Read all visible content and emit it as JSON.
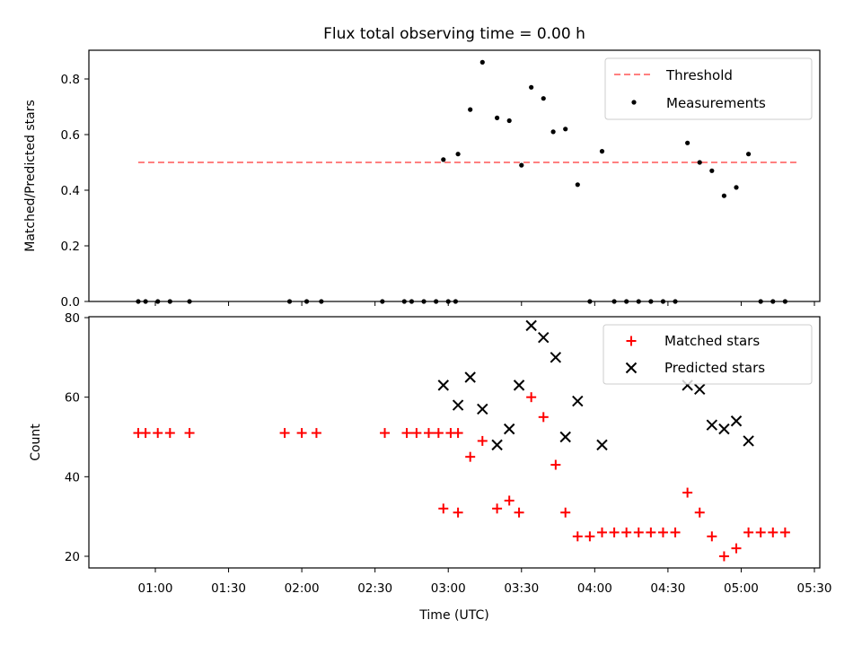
{
  "chart_data": [
    {
      "type": "scatter",
      "title": "Flux total observing time = 0.00 h",
      "xlabel": "",
      "ylabel": "Matched/Predicted stars",
      "ylim": [
        0,
        0.9
      ],
      "yticks": [
        "0.0",
        "0.2",
        "0.4",
        "0.6",
        "0.8"
      ],
      "legend_position": "top-right",
      "series": [
        {
          "name": "Threshold",
          "kind": "dashed-line",
          "color": "#ff8080",
          "x": [
            "00:53",
            "05:23"
          ],
          "y": [
            0.5,
            0.5
          ]
        },
        {
          "name": "Measurements",
          "kind": "points",
          "color": "#000000",
          "x": [
            "00:53",
            "00:56",
            "01:01",
            "01:06",
            "01:14",
            "01:55",
            "02:02",
            "02:08",
            "02:33",
            "02:42",
            "02:45",
            "02:50",
            "02:55",
            "03:00",
            "03:03",
            "02:58",
            "03:04",
            "03:09",
            "03:14",
            "03:20",
            "03:25",
            "03:30",
            "03:34",
            "03:39",
            "03:43",
            "03:48",
            "03:53",
            "03:58",
            "04:03",
            "04:08",
            "04:13",
            "04:18",
            "04:23",
            "04:28",
            "04:33",
            "04:38",
            "04:43",
            "04:48",
            "04:53",
            "04:58",
            "05:03",
            "05:08",
            "05:13",
            "05:18"
          ],
          "y": [
            0,
            0,
            0,
            0,
            0,
            0,
            0,
            0,
            0,
            0,
            0,
            0,
            0,
            0,
            0,
            0.51,
            0.53,
            0.69,
            0.86,
            0.66,
            0.65,
            0.49,
            0.77,
            0.73,
            0.61,
            0.62,
            0.42,
            0,
            0.54,
            0,
            0,
            0,
            0,
            0,
            0,
            0.57,
            0.5,
            0.47,
            0.38,
            0.41,
            0.53,
            0,
            0,
            0
          ]
        }
      ]
    },
    {
      "type": "scatter",
      "title": "",
      "xlabel": "Time (UTC)",
      "ylabel": "Count",
      "ylim": [
        17,
        81
      ],
      "yticks": [
        "20",
        "40",
        "60",
        "80"
      ],
      "xticks": [
        "01:00",
        "01:30",
        "02:00",
        "02:30",
        "03:00",
        "03:30",
        "04:00",
        "04:30",
        "05:00",
        "05:30"
      ],
      "legend_position": "top-right",
      "series": [
        {
          "name": "Matched stars",
          "marker": "plus",
          "color": "#ff0000",
          "x": [
            "00:53",
            "00:56",
            "01:01",
            "01:06",
            "01:14",
            "01:53",
            "02:00",
            "02:06",
            "02:34",
            "02:43",
            "02:47",
            "02:52",
            "02:56",
            "03:01",
            "03:04",
            "02:58",
            "03:04",
            "03:09",
            "03:14",
            "03:20",
            "03:25",
            "03:29",
            "03:34",
            "03:39",
            "03:44",
            "03:48",
            "03:53",
            "03:58",
            "04:03",
            "04:08",
            "04:13",
            "04:18",
            "04:23",
            "04:28",
            "04:33",
            "04:38",
            "04:43",
            "04:48",
            "04:53",
            "04:58",
            "05:03",
            "05:08",
            "05:13",
            "05:18"
          ],
          "y": [
            51,
            51,
            51,
            51,
            51,
            51,
            51,
            51,
            51,
            51,
            51,
            51,
            51,
            51,
            51,
            32,
            31,
            45,
            49,
            32,
            34,
            31,
            60,
            55,
            43,
            31,
            25,
            25,
            26,
            26,
            26,
            26,
            26,
            26,
            26,
            36,
            31,
            25,
            20,
            22,
            26,
            26,
            26,
            26
          ]
        },
        {
          "name": "Predicted stars",
          "marker": "x",
          "color": "#000000",
          "x": [
            "02:58",
            "03:04",
            "03:09",
            "03:14",
            "03:20",
            "03:25",
            "03:29",
            "03:34",
            "03:39",
            "03:44",
            "03:48",
            "03:53",
            "04:03",
            "04:38",
            "04:43",
            "04:48",
            "04:53",
            "04:58",
            "05:03"
          ],
          "y": [
            63,
            58,
            65,
            57,
            48,
            52,
            63,
            78,
            75,
            70,
            50,
            59,
            48,
            63,
            62,
            53,
            52,
            54,
            49
          ]
        }
      ]
    }
  ]
}
